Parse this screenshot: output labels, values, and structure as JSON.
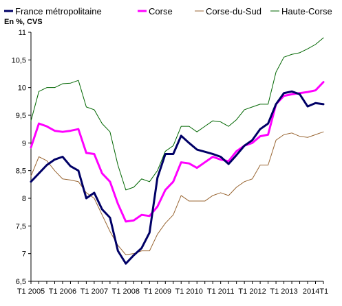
{
  "chart_data": {
    "type": "line",
    "unit_label": "En %, CVS",
    "ylim": [
      6.5,
      11
    ],
    "yticks": [
      "6,5",
      "7",
      "7,5",
      "8",
      "8,5",
      "9",
      "9,5",
      "10",
      "10,5",
      "11"
    ],
    "xlim": [
      2005.0,
      2014.25
    ],
    "xticks": [
      {
        "label": "T1 2005",
        "x": 2005.0
      },
      {
        "label": "T1 2006",
        "x": 2006.0
      },
      {
        "label": "T1 2007",
        "x": 2007.0
      },
      {
        "label": "T1 2008",
        "x": 2008.0
      },
      {
        "label": "T1 2009",
        "x": 2009.0
      },
      {
        "label": "T1 2010",
        "x": 2010.0
      },
      {
        "label": "T1 2011",
        "x": 2011.0
      },
      {
        "label": "T1 2012",
        "x": 2012.0
      },
      {
        "label": "T1 2013",
        "x": 2013.0
      },
      {
        "label": "2014T1",
        "x": 2014.0
      }
    ],
    "grid": false,
    "legend": "top",
    "x": [
      2005.0,
      2005.25,
      2005.5,
      2005.75,
      2006.0,
      2006.25,
      2006.5,
      2006.75,
      2007.0,
      2007.25,
      2007.5,
      2007.75,
      2008.0,
      2008.25,
      2008.5,
      2008.75,
      2009.0,
      2009.25,
      2009.5,
      2009.75,
      2010.0,
      2010.25,
      2010.5,
      2010.75,
      2011.0,
      2011.25,
      2011.5,
      2011.75,
      2012.0,
      2012.25,
      2012.5,
      2012.75,
      2013.0,
      2013.25,
      2013.5,
      2013.75,
      2014.0,
      2014.25
    ],
    "series": [
      {
        "name": "France métropolitaine",
        "color": "#000066",
        "width": 3,
        "values": [
          8.3,
          8.45,
          8.6,
          8.7,
          8.75,
          8.58,
          8.5,
          8.0,
          8.1,
          7.8,
          7.65,
          7.05,
          6.82,
          6.97,
          7.1,
          7.38,
          8.37,
          8.8,
          8.8,
          9.13,
          9.0,
          8.88,
          8.84,
          8.8,
          8.75,
          8.62,
          8.78,
          8.95,
          9.05,
          9.25,
          9.35,
          9.7,
          9.9,
          9.93,
          9.88,
          9.66,
          9.72,
          9.7
        ]
      },
      {
        "name": "Corse",
        "color": "#ff00ff",
        "width": 3,
        "values": [
          8.92,
          9.35,
          9.3,
          9.22,
          9.2,
          9.22,
          9.25,
          8.82,
          8.8,
          8.45,
          8.3,
          7.9,
          7.58,
          7.6,
          7.7,
          7.68,
          7.85,
          8.15,
          8.3,
          8.65,
          8.63,
          8.55,
          8.65,
          8.75,
          8.7,
          8.67,
          8.85,
          8.95,
          9.0,
          9.12,
          9.15,
          9.7,
          9.85,
          9.88,
          9.9,
          9.92,
          9.95,
          10.1
        ]
      },
      {
        "name": "Corse-du-Sud",
        "color": "#996633",
        "width": 1,
        "values": [
          8.4,
          8.75,
          8.68,
          8.5,
          8.35,
          8.33,
          8.3,
          8.1,
          8.0,
          7.7,
          7.4,
          7.15,
          6.98,
          7.0,
          7.05,
          7.05,
          7.35,
          7.55,
          7.7,
          8.05,
          7.95,
          7.95,
          7.95,
          8.05,
          8.1,
          8.05,
          8.2,
          8.3,
          8.35,
          8.6,
          8.6,
          9.05,
          9.15,
          9.18,
          9.12,
          9.1,
          9.15,
          9.2
        ]
      },
      {
        "name": "Haute-Corse",
        "color": "#006600",
        "width": 1,
        "values": [
          9.4,
          9.93,
          10.0,
          10.0,
          10.07,
          10.08,
          10.13,
          9.65,
          9.6,
          9.35,
          9.2,
          8.6,
          8.15,
          8.2,
          8.35,
          8.3,
          8.5,
          8.85,
          8.95,
          9.3,
          9.3,
          9.2,
          9.3,
          9.4,
          9.38,
          9.3,
          9.42,
          9.6,
          9.65,
          9.7,
          9.7,
          10.28,
          10.55,
          10.6,
          10.63,
          10.7,
          10.78,
          10.9
        ]
      }
    ]
  }
}
